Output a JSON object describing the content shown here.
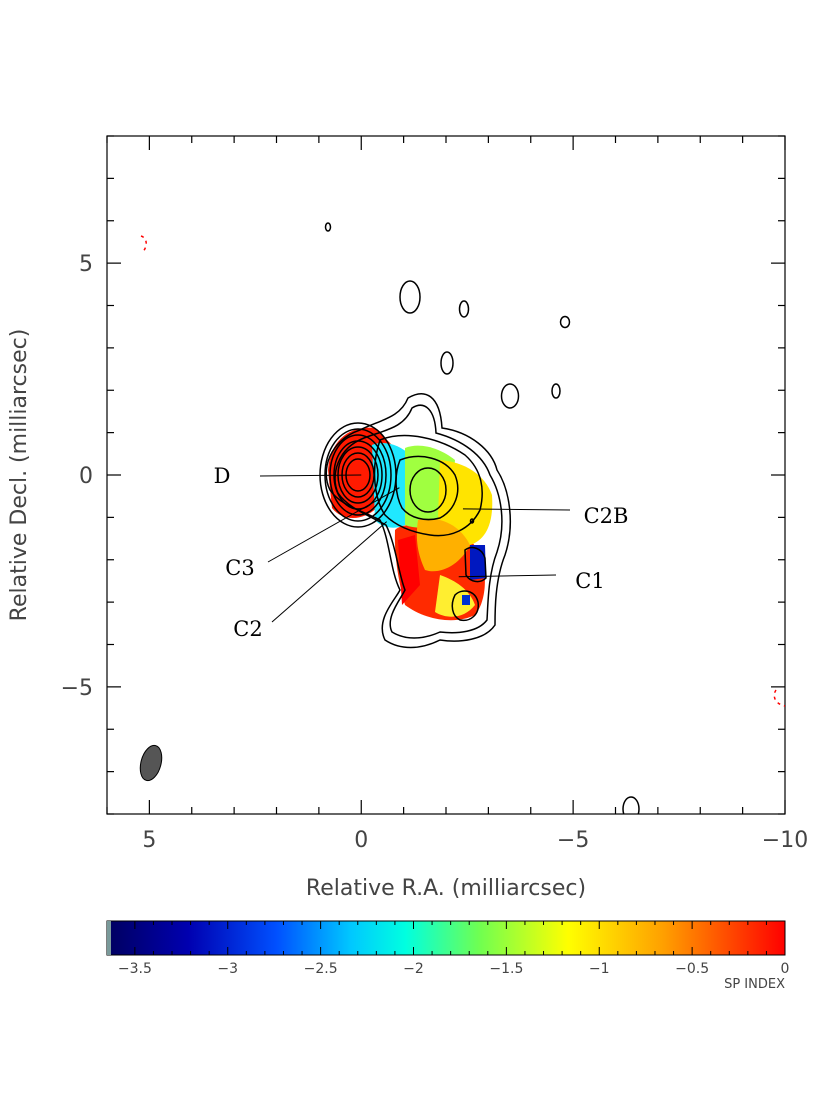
{
  "chart_data": {
    "type": "heatmap",
    "title": "",
    "xlabel": "Relative R.A. (milliarcsec)",
    "ylabel": "Relative Decl. (milliarcsec)",
    "xlim": [
      6,
      -10
    ],
    "ylim": [
      -8,
      8
    ],
    "x_ticks": [
      5,
      0,
      -5,
      -10
    ],
    "x_tick_labels": [
      "5",
      "0",
      "−5",
      "−10"
    ],
    "y_ticks": [
      5,
      0,
      -5
    ],
    "y_tick_labels": [
      "5",
      "0",
      "−5"
    ],
    "colorbar": {
      "label": "SP INDEX",
      "range": [
        -3.65,
        0
      ],
      "ticks": [
        -3.5,
        -3,
        -2.5,
        -2,
        -1.5,
        -1,
        -0.5,
        0
      ],
      "tick_labels": [
        "−3.5",
        "−3",
        "−2.5",
        "−2",
        "−1.5",
        "−1",
        "−0.5",
        "0"
      ]
    },
    "components": [
      {
        "name": "D",
        "x": 0.0,
        "y": 0.0
      },
      {
        "name": "C3",
        "x": -0.9,
        "y": -0.3
      },
      {
        "name": "C2",
        "x": -0.6,
        "y": -1.1
      },
      {
        "name": "C2B",
        "x": -2.4,
        "y": -0.8
      },
      {
        "name": "C1",
        "x": -2.3,
        "y": -2.4
      }
    ],
    "beam": {
      "x": 5.0,
      "y": -6.8,
      "major": 0.9,
      "minor": 0.7,
      "pa_deg": 15
    }
  },
  "colors": {
    "contour": "#000000",
    "beam_fill": "#555555",
    "negative_contour": "#ff0000"
  }
}
